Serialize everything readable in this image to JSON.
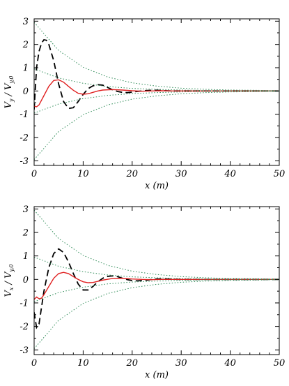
{
  "chart_data": [
    {
      "type": "line",
      "xlabel": "x (m)",
      "ylabel": "V_y / V_y,0",
      "ylabel_parts": {
        "num": "V",
        "num_sub": "y",
        "sep": " / ",
        "den": "V",
        "den_sub": "y,0"
      },
      "xlim": [
        0,
        50
      ],
      "ylim": [
        -3.2,
        3.1
      ],
      "xticks": [
        0,
        10,
        20,
        30,
        40,
        50
      ],
      "yticks": [
        -3,
        -2,
        -1,
        0,
        1,
        2,
        3
      ],
      "grid": false,
      "series": [
        {
          "style": "dashed",
          "color": "#000000",
          "x": [
            0,
            0.5,
            1,
            1.5,
            2,
            2.5,
            3,
            4,
            5,
            6,
            7,
            8,
            9,
            10,
            11,
            12,
            13,
            14,
            15,
            16,
            17,
            18,
            19,
            20,
            21,
            22,
            23,
            24,
            25,
            26,
            27,
            28,
            30,
            35,
            40,
            45,
            50
          ],
          "y": [
            -0.8,
            1.0,
            1.7,
            2.05,
            2.2,
            2.18,
            2.0,
            1.3,
            0.3,
            -0.45,
            -0.75,
            -0.72,
            -0.45,
            -0.15,
            0.1,
            0.22,
            0.27,
            0.25,
            0.15,
            0.05,
            -0.02,
            -0.06,
            -0.07,
            -0.05,
            -0.02,
            0.0,
            0.02,
            0.03,
            0.03,
            0.02,
            0.01,
            0.0,
            0.0,
            0.0,
            0.0,
            0.0,
            0.0
          ]
        },
        {
          "style": "solid",
          "color": "#e02020",
          "x": [
            0,
            0.5,
            1,
            2,
            3,
            4,
            5,
            6,
            7,
            8,
            9,
            10,
            11,
            12,
            13,
            14,
            16,
            18,
            20,
            22,
            24,
            26,
            28,
            30,
            35,
            40,
            45,
            50
          ],
          "y": [
            -0.65,
            -0.68,
            -0.6,
            -0.2,
            0.2,
            0.45,
            0.48,
            0.38,
            0.2,
            0.03,
            -0.1,
            -0.14,
            -0.12,
            -0.06,
            0.0,
            0.04,
            0.06,
            0.04,
            0.01,
            -0.01,
            0.0,
            0.01,
            0.0,
            0.0,
            0.0,
            0.0,
            0.0,
            0.0
          ]
        },
        {
          "style": "dotted",
          "color": "#2e8b57",
          "x": [
            0,
            5,
            10,
            15,
            20,
            25,
            30,
            35,
            40,
            45,
            50
          ],
          "y": [
            2.95,
            1.74,
            1.02,
            0.6,
            0.35,
            0.21,
            0.12,
            0.07,
            0.04,
            0.03,
            0.01
          ]
        },
        {
          "style": "dotted",
          "color": "#2e8b57",
          "x": [
            0,
            5,
            10,
            15,
            20,
            25,
            30,
            35,
            40,
            45,
            50
          ],
          "y": [
            -2.95,
            -1.74,
            -1.02,
            -0.6,
            -0.35,
            -0.21,
            -0.12,
            -0.07,
            -0.04,
            -0.03,
            -0.01
          ]
        },
        {
          "style": "dotted",
          "color": "#2e8b57",
          "x": [
            0,
            5,
            10,
            15,
            20,
            25,
            30,
            35,
            40,
            45,
            50
          ],
          "y": [
            0.95,
            0.56,
            0.33,
            0.19,
            0.11,
            0.07,
            0.04,
            0.02,
            0.01,
            0.0,
            0.0
          ]
        },
        {
          "style": "dotted",
          "color": "#2e8b57",
          "x": [
            0,
            5,
            10,
            15,
            20,
            25,
            30,
            35,
            40,
            45,
            50
          ],
          "y": [
            -0.95,
            -0.56,
            -0.33,
            -0.19,
            -0.11,
            -0.07,
            -0.04,
            -0.02,
            -0.01,
            0.0,
            0.0
          ]
        }
      ]
    },
    {
      "type": "line",
      "xlabel": "x (m)",
      "ylabel": "V_x / V_y,0",
      "ylabel_parts": {
        "num": "V",
        "num_sub": "x",
        "sep": " / ",
        "den": "V",
        "den_sub": "y,0"
      },
      "xlim": [
        0,
        50
      ],
      "ylim": [
        -3.2,
        3.1
      ],
      "xticks": [
        0,
        10,
        20,
        30,
        40,
        50
      ],
      "yticks": [
        -3,
        -2,
        -1,
        0,
        1,
        2,
        3
      ],
      "grid": false,
      "series": [
        {
          "style": "dashed",
          "color": "#000000",
          "x": [
            0,
            0.5,
            1,
            1.5,
            2,
            3,
            4,
            5,
            6,
            7,
            8,
            9,
            10,
            11,
            12,
            13,
            14,
            15,
            16,
            17,
            18,
            19,
            20,
            21,
            22,
            23,
            24,
            25,
            26,
            27,
            28,
            30,
            35,
            40,
            45,
            50
          ],
          "y": [
            -1.4,
            -2.05,
            -1.9,
            -1.2,
            -0.5,
            0.5,
            1.1,
            1.3,
            1.15,
            0.75,
            0.25,
            -0.2,
            -0.45,
            -0.45,
            -0.3,
            -0.1,
            0.05,
            0.13,
            0.15,
            0.12,
            0.05,
            -0.01,
            -0.05,
            -0.06,
            -0.05,
            -0.03,
            0.0,
            0.02,
            0.02,
            0.02,
            0.01,
            0.0,
            0.0,
            0.0,
            0.0,
            0.0
          ]
        },
        {
          "style": "solid",
          "color": "#e02020",
          "x": [
            0,
            0.5,
            1,
            1.5,
            2,
            3,
            4,
            5,
            6,
            7,
            8,
            9,
            10,
            11,
            12,
            13,
            14,
            16,
            18,
            20,
            22,
            24,
            26,
            28,
            30,
            35,
            40,
            45,
            50
          ],
          "y": [
            -0.85,
            -0.75,
            -0.82,
            -0.8,
            -0.65,
            -0.3,
            0.05,
            0.25,
            0.3,
            0.25,
            0.12,
            0.0,
            -0.1,
            -0.14,
            -0.13,
            -0.08,
            -0.03,
            0.04,
            0.05,
            0.02,
            0.0,
            -0.01,
            0.0,
            0.0,
            0.0,
            0.0,
            0.0,
            0.0,
            0.0
          ]
        },
        {
          "style": "dotted",
          "color": "#2e8b57",
          "x": [
            0,
            5,
            10,
            15,
            20,
            25,
            30,
            35,
            40,
            45,
            50
          ],
          "y": [
            2.95,
            1.74,
            1.02,
            0.6,
            0.35,
            0.21,
            0.12,
            0.07,
            0.04,
            0.03,
            0.01
          ]
        },
        {
          "style": "dotted",
          "color": "#2e8b57",
          "x": [
            0,
            5,
            10,
            15,
            20,
            25,
            30,
            35,
            40,
            45,
            50
          ],
          "y": [
            -2.95,
            -1.74,
            -1.02,
            -0.6,
            -0.35,
            -0.21,
            -0.12,
            -0.07,
            -0.04,
            -0.03,
            -0.01
          ]
        },
        {
          "style": "dotted",
          "color": "#2e8b57",
          "x": [
            0,
            5,
            10,
            15,
            20,
            25,
            30,
            35,
            40,
            45,
            50
          ],
          "y": [
            0.95,
            0.56,
            0.33,
            0.19,
            0.11,
            0.07,
            0.04,
            0.02,
            0.01,
            0.0,
            0.0
          ]
        },
        {
          "style": "dotted",
          "color": "#2e8b57",
          "x": [
            0,
            5,
            10,
            15,
            20,
            25,
            30,
            35,
            40,
            45,
            50
          ],
          "y": [
            -0.95,
            -0.56,
            -0.33,
            -0.19,
            -0.11,
            -0.07,
            -0.04,
            -0.02,
            -0.01,
            0.0,
            0.0
          ]
        }
      ]
    }
  ]
}
